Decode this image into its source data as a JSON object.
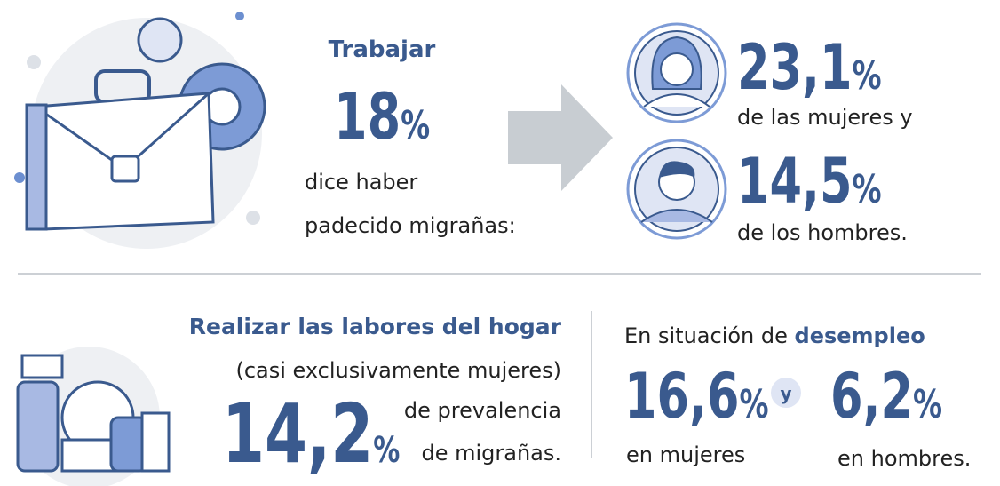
{
  "top": {
    "heading": "Trabajar",
    "stat": {
      "number": "18",
      "unit": "%"
    },
    "caption": [
      "dice haber",
      "padecido migrañas:"
    ],
    "women": {
      "number": "23,1",
      "unit": "%",
      "caption": "de las mujeres y"
    },
    "men": {
      "number": "14,5",
      "unit": "%",
      "caption": "de los hombres."
    }
  },
  "household": {
    "heading": "Realizar las labores del hogar",
    "note": "(casi exclusivamente mujeres)",
    "stat": {
      "number": "14,2",
      "unit": "%"
    },
    "caption": [
      "de prevalencia",
      "de migrañas."
    ]
  },
  "unemployment": {
    "heading": "En situación de ",
    "heading_bold": "desempleo",
    "women": {
      "number": "16,6",
      "unit": "%",
      "caption": "en mujeres"
    },
    "joiner": "y",
    "men": {
      "number": "6,2",
      "unit": "%",
      "caption": "en hombres."
    }
  }
}
